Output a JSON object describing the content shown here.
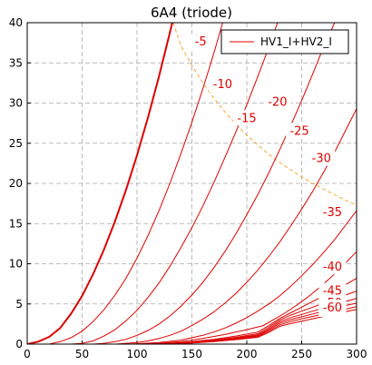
{
  "chart_data": {
    "type": "line",
    "title": "6A4 (triode)",
    "xlabel": "",
    "ylabel": "",
    "xlim": [
      0,
      300
    ],
    "ylim": [
      0,
      40
    ],
    "x_ticks": [
      0,
      50,
      100,
      150,
      200,
      250,
      300
    ],
    "y_ticks": [
      0,
      5,
      10,
      15,
      20,
      25,
      30,
      35,
      40
    ],
    "grid": true,
    "legend": {
      "position": "top-right",
      "entries": [
        "HV1_I+HV2_I"
      ]
    },
    "colors": {
      "curves": "#dd0000",
      "dissipation": "#f0a020",
      "grid": "#a8a8a8"
    },
    "series": [
      {
        "label": "",
        "points": [
          [
            0,
            0
          ],
          [
            10,
            0.3
          ],
          [
            20,
            0.9
          ],
          [
            30,
            2
          ],
          [
            40,
            3.8
          ],
          [
            50,
            6
          ],
          [
            60,
            8.7
          ],
          [
            70,
            11.8
          ],
          [
            80,
            15.3
          ],
          [
            90,
            19.2
          ],
          [
            100,
            23.5
          ],
          [
            110,
            28.2
          ],
          [
            120,
            33.3
          ],
          [
            130,
            38.8
          ],
          [
            133,
            40.5
          ]
        ]
      },
      {
        "label": "-5",
        "points": [
          [
            0,
            0
          ],
          [
            20,
            0
          ],
          [
            30,
            0.3
          ],
          [
            40,
            0.8
          ],
          [
            50,
            1.6
          ],
          [
            60,
            2.8
          ],
          [
            70,
            4.3
          ],
          [
            80,
            6.1
          ],
          [
            90,
            8.2
          ],
          [
            100,
            10.7
          ],
          [
            110,
            13.5
          ],
          [
            120,
            16.6
          ],
          [
            130,
            20
          ],
          [
            140,
            23.7
          ],
          [
            150,
            27.6
          ],
          [
            160,
            31.8
          ],
          [
            170,
            36.2
          ],
          [
            178,
            40
          ]
        ]
      },
      {
        "label": "-10",
        "points": [
          [
            0,
            0
          ],
          [
            40,
            0
          ],
          [
            50,
            0.1
          ],
          [
            60,
            0.4
          ],
          [
            70,
            1
          ],
          [
            80,
            1.8
          ],
          [
            90,
            2.9
          ],
          [
            100,
            4.2
          ],
          [
            110,
            5.8
          ],
          [
            120,
            7.6
          ],
          [
            130,
            9.7
          ],
          [
            140,
            12
          ],
          [
            150,
            14.5
          ],
          [
            160,
            17.2
          ],
          [
            170,
            20.1
          ],
          [
            180,
            23.2
          ],
          [
            190,
            26.4
          ],
          [
            200,
            29.8
          ],
          [
            210,
            33.3
          ],
          [
            220,
            36.9
          ],
          [
            228,
            40
          ]
        ]
      },
      {
        "label": "-15",
        "points": [
          [
            0,
            0
          ],
          [
            60,
            0
          ],
          [
            70,
            0.1
          ],
          [
            80,
            0.3
          ],
          [
            90,
            0.6
          ],
          [
            100,
            1.1
          ],
          [
            110,
            1.7
          ],
          [
            120,
            2.5
          ],
          [
            130,
            3.5
          ],
          [
            140,
            4.7
          ],
          [
            150,
            6.1
          ],
          [
            160,
            7.7
          ],
          [
            170,
            9.5
          ],
          [
            180,
            11.5
          ],
          [
            190,
            13.7
          ],
          [
            200,
            16.1
          ],
          [
            210,
            18.6
          ],
          [
            220,
            21.3
          ],
          [
            230,
            24.2
          ],
          [
            240,
            27.2
          ],
          [
            250,
            30.3
          ],
          [
            260,
            33.6
          ],
          [
            270,
            37
          ],
          [
            280,
            40
          ]
        ]
      },
      {
        "label": "-20",
        "points": [
          [
            0,
            0
          ],
          [
            80,
            0
          ],
          [
            90,
            0.1
          ],
          [
            100,
            0.2
          ],
          [
            110,
            0.4
          ],
          [
            120,
            0.7
          ],
          [
            130,
            1.1
          ],
          [
            140,
            1.6
          ],
          [
            150,
            2.3
          ],
          [
            160,
            3.1
          ],
          [
            170,
            4
          ],
          [
            180,
            5.1
          ],
          [
            190,
            6.3
          ],
          [
            200,
            7.7
          ],
          [
            210,
            9.2
          ],
          [
            220,
            10.9
          ],
          [
            230,
            12.7
          ],
          [
            240,
            14.7
          ],
          [
            250,
            16.8
          ],
          [
            260,
            19
          ],
          [
            270,
            21.4
          ],
          [
            280,
            23.9
          ],
          [
            290,
            26.6
          ],
          [
            300,
            29.3
          ]
        ]
      },
      {
        "label": "-25",
        "points": [
          [
            0,
            0
          ],
          [
            90,
            0
          ],
          [
            100,
            0.05
          ],
          [
            120,
            0.2
          ],
          [
            140,
            0.5
          ],
          [
            160,
            1.1
          ],
          [
            170,
            1.5
          ],
          [
            180,
            2
          ],
          [
            190,
            2.6
          ],
          [
            200,
            3.3
          ],
          [
            210,
            4.1
          ],
          [
            220,
            5
          ],
          [
            230,
            6
          ],
          [
            240,
            7.2
          ],
          [
            250,
            8.5
          ],
          [
            260,
            9.9
          ],
          [
            270,
            11.4
          ],
          [
            280,
            13
          ],
          [
            290,
            14.8
          ],
          [
            300,
            16.6
          ]
        ]
      },
      {
        "label": "-30",
        "points": [
          [
            0,
            0
          ],
          [
            100,
            0
          ],
          [
            120,
            0.1
          ],
          [
            140,
            0.3
          ],
          [
            160,
            0.7
          ],
          [
            180,
            1.2
          ],
          [
            200,
            1.8
          ],
          [
            215,
            2.3
          ],
          [
            225,
            3.1
          ],
          [
            235,
            3.9
          ],
          [
            245,
            4.8
          ],
          [
            255,
            5.8
          ],
          [
            265,
            6.9
          ],
          [
            275,
            8.1
          ],
          [
            285,
            9.4
          ],
          [
            300,
            11.5
          ]
        ]
      },
      {
        "label": "-35",
        "points": [
          [
            0,
            0
          ],
          [
            110,
            0
          ],
          [
            130,
            0.1
          ],
          [
            150,
            0.3
          ],
          [
            170,
            0.6
          ],
          [
            190,
            1
          ],
          [
            210,
            1.5
          ],
          [
            220,
            2.3
          ],
          [
            230,
            3.2
          ],
          [
            240,
            3.9
          ],
          [
            250,
            4.6
          ],
          [
            260,
            5.3
          ],
          [
            270,
            6
          ],
          [
            280,
            6.7
          ],
          [
            290,
            7.4
          ],
          [
            300,
            8.2
          ]
        ]
      },
      {
        "label": "-40",
        "points": [
          [
            0,
            0
          ],
          [
            110,
            0
          ],
          [
            130,
            0.1
          ],
          [
            150,
            0.25
          ],
          [
            170,
            0.5
          ],
          [
            190,
            0.85
          ],
          [
            210,
            1.3
          ],
          [
            220,
            2.1
          ],
          [
            230,
            3
          ],
          [
            240,
            3.6
          ],
          [
            250,
            4.1
          ],
          [
            260,
            4.6
          ],
          [
            270,
            5.1
          ],
          [
            280,
            5.6
          ],
          [
            290,
            6.1
          ],
          [
            300,
            6.6
          ]
        ]
      },
      {
        "label": "-45",
        "points": [
          [
            0,
            0
          ],
          [
            110,
            0
          ],
          [
            130,
            0.08
          ],
          [
            150,
            0.2
          ],
          [
            170,
            0.45
          ],
          [
            190,
            0.75
          ],
          [
            210,
            1.15
          ],
          [
            220,
            1.9
          ],
          [
            230,
            2.8
          ],
          [
            240,
            3.3
          ],
          [
            250,
            3.7
          ],
          [
            260,
            4.1
          ],
          [
            270,
            4.5
          ],
          [
            280,
            4.9
          ],
          [
            290,
            5.3
          ],
          [
            300,
            5.7
          ]
        ]
      },
      {
        "label": "-50",
        "points": [
          [
            0,
            0
          ],
          [
            110,
            0
          ],
          [
            130,
            0.07
          ],
          [
            150,
            0.18
          ],
          [
            170,
            0.4
          ],
          [
            190,
            0.7
          ],
          [
            210,
            1.05
          ],
          [
            220,
            1.75
          ],
          [
            230,
            2.6
          ],
          [
            240,
            3.05
          ],
          [
            250,
            3.4
          ],
          [
            260,
            3.75
          ],
          [
            270,
            4.1
          ],
          [
            280,
            4.45
          ],
          [
            290,
            4.8
          ],
          [
            300,
            5.1
          ]
        ]
      },
      {
        "label": "-55",
        "points": [
          [
            0,
            0
          ],
          [
            110,
            0
          ],
          [
            130,
            0.06
          ],
          [
            150,
            0.16
          ],
          [
            170,
            0.35
          ],
          [
            190,
            0.62
          ],
          [
            210,
            0.95
          ],
          [
            220,
            1.6
          ],
          [
            230,
            2.4
          ],
          [
            240,
            2.8
          ],
          [
            250,
            3.15
          ],
          [
            260,
            3.45
          ],
          [
            270,
            3.75
          ],
          [
            280,
            4.05
          ],
          [
            290,
            4.35
          ],
          [
            300,
            4.65
          ]
        ]
      },
      {
        "label": "-60",
        "points": [
          [
            0,
            0
          ],
          [
            110,
            0
          ],
          [
            130,
            0.05
          ],
          [
            150,
            0.14
          ],
          [
            170,
            0.3
          ],
          [
            190,
            0.55
          ],
          [
            210,
            0.85
          ],
          [
            220,
            1.45
          ],
          [
            230,
            2.2
          ],
          [
            240,
            2.55
          ],
          [
            250,
            2.85
          ],
          [
            260,
            3.15
          ],
          [
            270,
            3.45
          ],
          [
            280,
            3.75
          ],
          [
            290,
            4.05
          ],
          [
            300,
            4.3
          ]
        ]
      }
    ],
    "dissipation_line": [
      [
        133,
        40
      ],
      [
        140,
        37.1
      ],
      [
        150,
        34.7
      ],
      [
        160,
        32.5
      ],
      [
        170,
        30.6
      ],
      [
        180,
        28.9
      ],
      [
        190,
        27.4
      ],
      [
        200,
        26
      ],
      [
        210,
        24.8
      ],
      [
        220,
        23.6
      ],
      [
        230,
        22.6
      ],
      [
        240,
        21.7
      ],
      [
        250,
        20.8
      ],
      [
        260,
        20
      ],
      [
        270,
        19.3
      ],
      [
        280,
        18.6
      ],
      [
        290,
        17.9
      ],
      [
        300,
        17.3
      ]
    ],
    "curve_labels": [
      {
        "text": "-5",
        "x": 158,
        "y": 37.6
      },
      {
        "text": "-10",
        "x": 178,
        "y": 32.3
      },
      {
        "text": "-15",
        "x": 200,
        "y": 28.1
      },
      {
        "text": "-20",
        "x": 228,
        "y": 30.1
      },
      {
        "text": "-25",
        "x": 248,
        "y": 26.5
      },
      {
        "text": "-30",
        "x": 268,
        "y": 23.1
      },
      {
        "text": "-35",
        "x": 278,
        "y": 16.4
      },
      {
        "text": "-40",
        "x": 278,
        "y": 9.6
      },
      {
        "text": "-45",
        "x": 278,
        "y": 6.6
      },
      {
        "text": "-50",
        "x": 278,
        "y": 5.1
      },
      {
        "text": "-55",
        "x": 278,
        "y": 4.3
      },
      {
        "text": "-60",
        "x": 278,
        "y": 4.5
      }
    ]
  }
}
